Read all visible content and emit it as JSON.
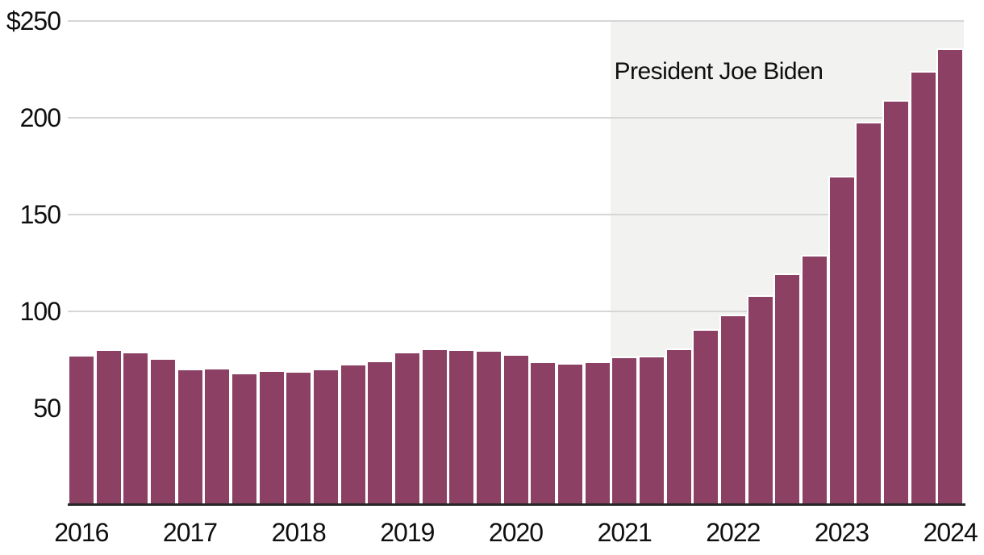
{
  "chart_data": {
    "type": "bar",
    "title": "",
    "unit": "$",
    "x": [
      "2016 Q1",
      "2016 Q2",
      "2016 Q3",
      "2016 Q4",
      "2017 Q1",
      "2017 Q2",
      "2017 Q3",
      "2017 Q4",
      "2018 Q1",
      "2018 Q2",
      "2018 Q3",
      "2018 Q4",
      "2019 Q1",
      "2019 Q2",
      "2019 Q3",
      "2019 Q4",
      "2020 Q1",
      "2020 Q2",
      "2020 Q3",
      "2020 Q4",
      "2021 Q1",
      "2021 Q2",
      "2021 Q3",
      "2021 Q4",
      "2022 Q1",
      "2022 Q2",
      "2022 Q3",
      "2022 Q4",
      "2023 Q1",
      "2023 Q2",
      "2023 Q3",
      "2023 Q4",
      "2024 Q1"
    ],
    "values": [
      77.5,
      80.5,
      79,
      76,
      70.5,
      71,
      68.5,
      69.5,
      69,
      70.5,
      73,
      74.5,
      79,
      81,
      80.5,
      80,
      78,
      74,
      73.5,
      74,
      76.5,
      77,
      81,
      91,
      98.5,
      108.5,
      119.5,
      129,
      170,
      198,
      209,
      224,
      236
    ],
    "x_tick_labels": [
      "2016",
      "2017",
      "2018",
      "2019",
      "2020",
      "2021",
      "2022",
      "2023",
      "2024"
    ],
    "y_tick_labels": [
      {
        "value": 250,
        "label": "$250"
      },
      {
        "value": 200,
        "label": "200"
      },
      {
        "value": 150,
        "label": "150"
      },
      {
        "value": 100,
        "label": "100"
      },
      {
        "value": 50,
        "label": "50"
      }
    ],
    "gridline_values": [
      100,
      150,
      200,
      250
    ],
    "ylim": [
      0,
      250
    ],
    "legend": "none",
    "grid": "horizontal",
    "annotation": {
      "text": "President Joe Biden",
      "region_start_x": "2021 Q1",
      "region_end": "chart-right-edge"
    },
    "colors": {
      "bar": "#8c4164",
      "region": "#f2f2f0",
      "gridline": "#d6d6d6",
      "axis": "#262626",
      "text": "#0f0f0f"
    }
  }
}
